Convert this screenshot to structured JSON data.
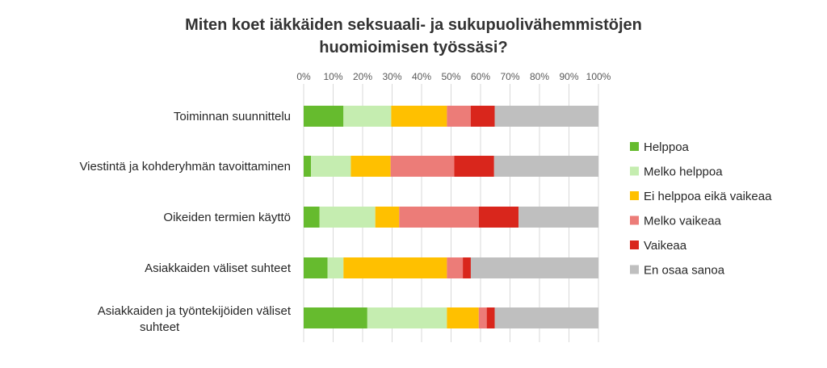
{
  "chart_data": {
    "type": "bar",
    "orientation": "horizontal",
    "stacked": true,
    "title_lines": [
      "Miten koet iäkkäiden seksuaali- ja sukupuolivähemmistöjen",
      "huomioimisen työssäsi?"
    ],
    "categories": [
      "Toiminnan suunnittelu",
      "Viestintä ja kohderyhmän tavoittaminen",
      "Oikeiden termien käyttö",
      "Asiakkaiden väliset suhteet",
      "Asiakkaiden ja työntekijöiden väliset suhteet"
    ],
    "xticks": [
      "0%",
      "10%",
      "20%",
      "30%",
      "40%",
      "50%",
      "60%",
      "70%",
      "80%",
      "90%",
      "100%"
    ],
    "xlim": [
      0,
      100
    ],
    "grid": true,
    "legend_position": "right",
    "series": [
      {
        "name": "Helppoa",
        "color": "#66bb2e",
        "values": [
          13.5,
          2.5,
          5.4,
          8.1,
          21.6
        ]
      },
      {
        "name": "Melko helppoa",
        "color": "#c5edb0",
        "values": [
          16.2,
          13.5,
          18.9,
          5.4,
          27.0
        ]
      },
      {
        "name": "Ei helppoa eikä vaikeaa",
        "color": "#ffc000",
        "values": [
          18.9,
          13.5,
          8.1,
          35.1,
          10.8
        ]
      },
      {
        "name": "Melko vaikeaa",
        "color": "#ec7c78",
        "values": [
          8.1,
          21.6,
          27.0,
          5.4,
          2.7
        ]
      },
      {
        "name": "Vaikeaa",
        "color": "#d9261c",
        "values": [
          8.1,
          13.5,
          13.5,
          2.7,
          2.7
        ]
      },
      {
        "name": "En osaa sanoa",
        "color": "#bfbfbf",
        "values": [
          35.2,
          35.4,
          27.1,
          43.3,
          35.2
        ]
      }
    ]
  }
}
